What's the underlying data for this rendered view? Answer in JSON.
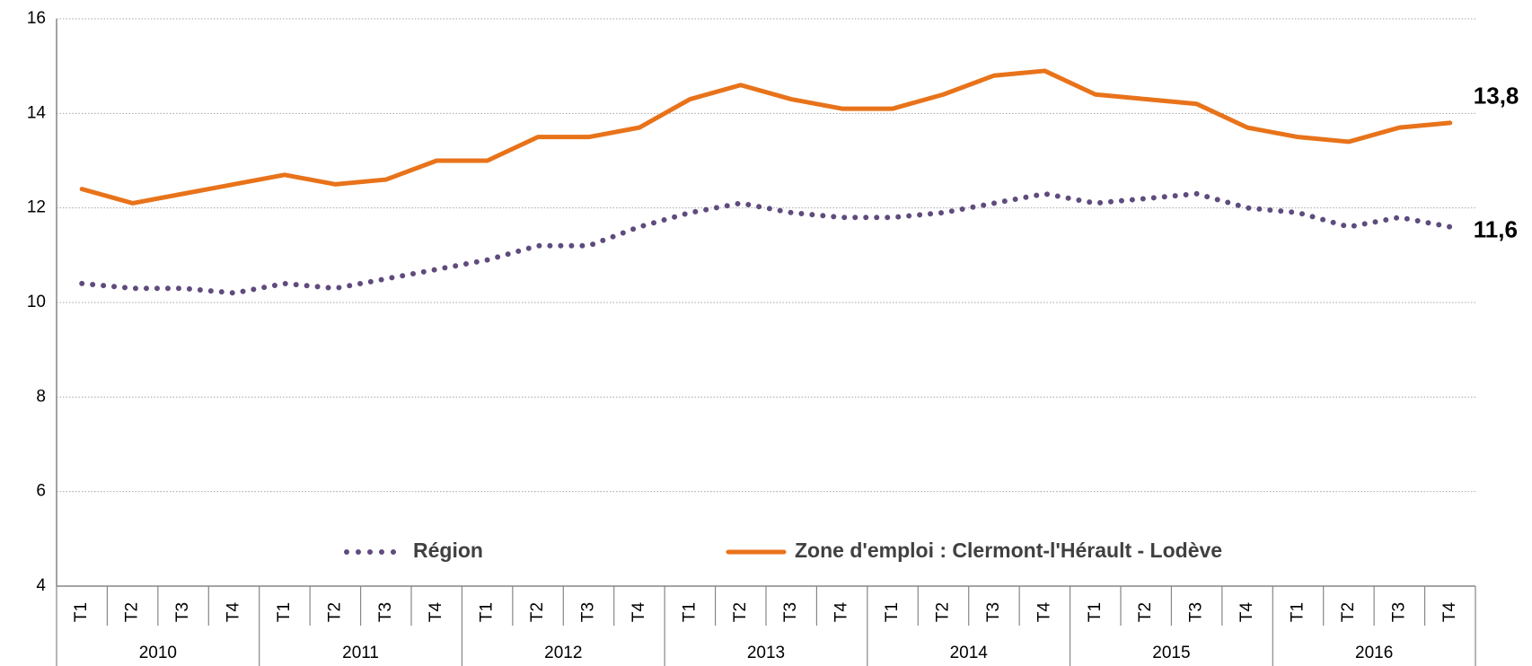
{
  "chart_data": {
    "type": "line",
    "categories": [
      "T1",
      "T2",
      "T3",
      "T4",
      "T1",
      "T2",
      "T3",
      "T4",
      "T1",
      "T2",
      "T3",
      "T4",
      "T1",
      "T2",
      "T3",
      "T4",
      "T1",
      "T2",
      "T3",
      "T4",
      "T1",
      "T2",
      "T3",
      "T4",
      "T1",
      "T2",
      "T3",
      "T4"
    ],
    "category_groups": [
      "2010",
      "2011",
      "2012",
      "2013",
      "2014",
      "2015",
      "2016"
    ],
    "ylim": [
      4,
      16
    ],
    "yticks": [
      4,
      6,
      8,
      10,
      12,
      14,
      16
    ],
    "grid": true,
    "series": [
      {
        "name": "Région",
        "color": "#5f4b7e",
        "style": "dotted",
        "values": [
          10.4,
          10.3,
          10.3,
          10.2,
          10.4,
          10.3,
          10.5,
          10.7,
          10.9,
          11.2,
          11.2,
          11.6,
          11.9,
          12.1,
          11.9,
          11.8,
          11.8,
          11.9,
          12.1,
          12.3,
          12.1,
          12.2,
          12.3,
          12.0,
          11.9,
          11.6,
          11.8,
          11.6
        ],
        "value_labels": [
          null,
          null,
          null,
          null,
          null,
          null,
          null,
          null,
          null,
          null,
          null,
          null,
          null,
          null,
          null,
          null,
          null,
          null,
          null,
          null,
          null,
          null,
          null,
          null,
          null,
          null,
          null,
          "11,6"
        ]
      },
      {
        "name": "Zone d'emploi : Clermont-l'Hérault - Lodève",
        "color": "#e8731a",
        "style": "solid",
        "values": [
          12.4,
          12.1,
          12.3,
          12.5,
          12.7,
          12.5,
          12.6,
          13.0,
          13.0,
          13.5,
          13.5,
          13.7,
          14.3,
          14.6,
          14.3,
          14.1,
          14.1,
          14.4,
          14.8,
          14.9,
          14.4,
          14.3,
          14.2,
          13.7,
          13.5,
          13.4,
          13.7,
          13.8
        ],
        "value_labels": [
          null,
          null,
          null,
          null,
          null,
          null,
          null,
          null,
          null,
          null,
          null,
          null,
          null,
          null,
          null,
          null,
          null,
          null,
          null,
          null,
          null,
          null,
          null,
          null,
          null,
          null,
          null,
          "13,8"
        ]
      }
    ]
  }
}
